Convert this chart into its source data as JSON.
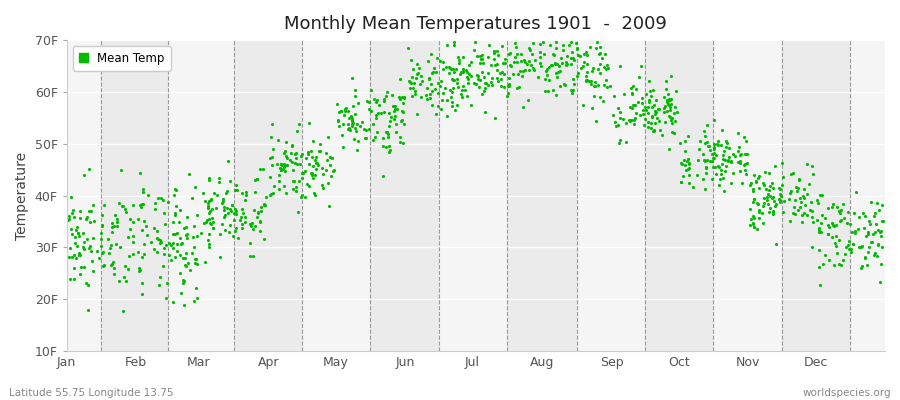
{
  "title": "Monthly Mean Temperatures 1901  -  2009",
  "ylabel": "Temperature",
  "footer_left": "Latitude 55.75 Longitude 13.75",
  "footer_right": "worldspecies.org",
  "legend_label": "Mean Temp",
  "dot_color": "#00bb00",
  "background_color": "#ffffff",
  "band_color_light": "#ebebeb",
  "band_color_white": "#f5f5f5",
  "ylim": [
    10,
    70
  ],
  "yticks": [
    10,
    20,
    30,
    40,
    50,
    60,
    70
  ],
  "ytick_labels": [
    "10F",
    "20F",
    "30F",
    "40F",
    "50F",
    "60F",
    "70F"
  ],
  "months": [
    "Jan",
    "Feb",
    "Mar",
    "Apr",
    "May",
    "Jun",
    "Jul",
    "Aug",
    "Sep",
    "Oct",
    "Nov",
    "Dec"
  ],
  "month_days": [
    31,
    28,
    31,
    30,
    31,
    30,
    31,
    31,
    30,
    31,
    30,
    31
  ],
  "monthly_means_C": [
    -0.5,
    -0.8,
    2.8,
    7.5,
    12.8,
    17.0,
    18.5,
    18.0,
    13.5,
    8.5,
    4.0,
    0.5
  ],
  "monthly_stds_C": [
    2.8,
    3.2,
    2.2,
    1.8,
    1.8,
    1.8,
    2.0,
    2.0,
    1.8,
    1.5,
    1.8,
    2.2
  ],
  "n_years": 109,
  "seed": 42
}
